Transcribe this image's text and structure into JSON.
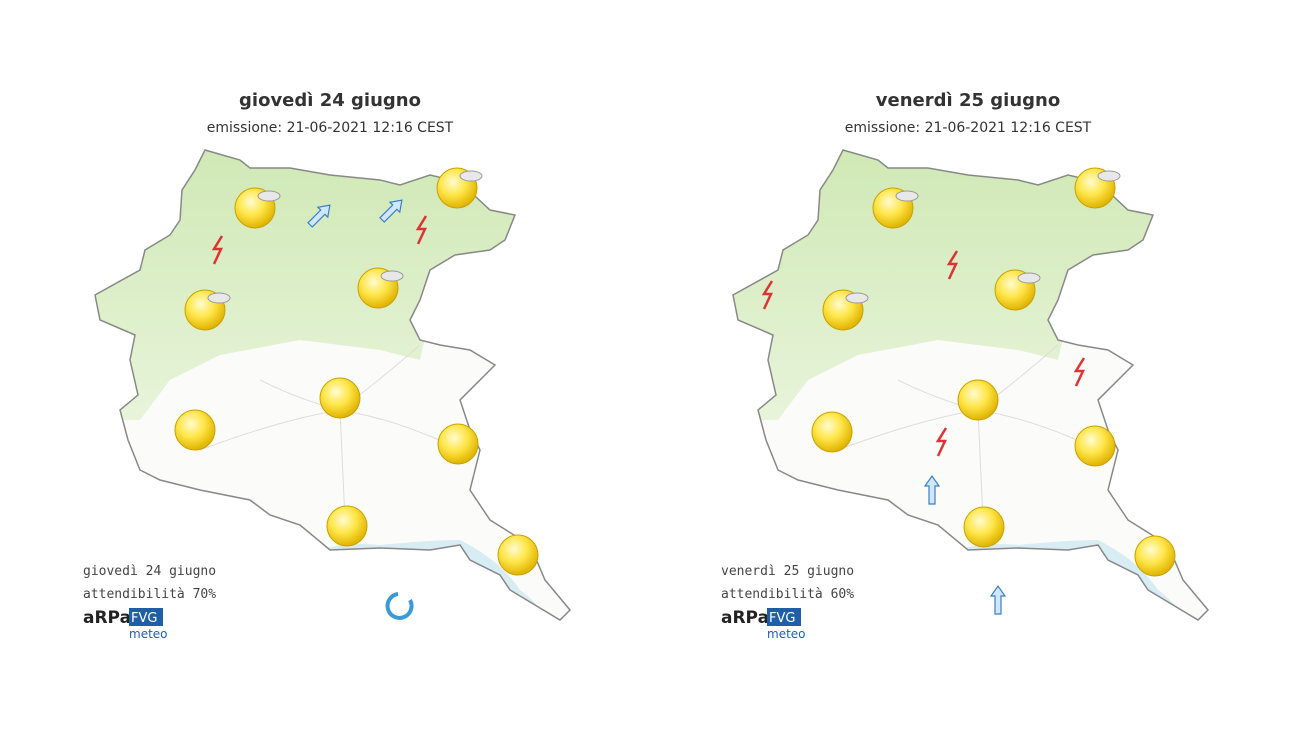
{
  "panels": [
    {
      "title": "giovedì 24 giugno",
      "emission": "emissione: 21-06-2021 12:16 CEST",
      "footer_date": "giovedì 24 giugno",
      "reliability": "attendibilità 70%"
    },
    {
      "title": "venerdì 25 giugno",
      "emission": "emissione: 21-06-2021 12:16 CEST",
      "footer_date": "venerdì 25 giugno",
      "reliability": "attendibilità 60%"
    }
  ],
  "logo": {
    "arpa": "aRPa",
    "fvg": "FVG",
    "meteo": "meteo"
  }
}
